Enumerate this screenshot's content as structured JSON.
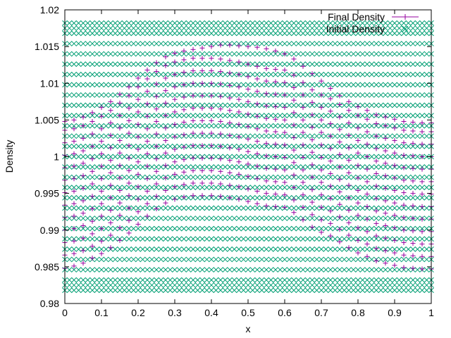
{
  "chart_data": {
    "type": "scatter",
    "title": "",
    "xlabel": "x",
    "ylabel": "Density",
    "xlim": [
      0,
      1
    ],
    "ylim": [
      0.98,
      1.02
    ],
    "x_ticks": [
      0,
      0.1,
      0.2,
      0.3,
      0.4,
      0.5,
      0.6,
      0.7,
      0.8,
      0.9,
      1
    ],
    "x_tick_labels": [
      "0",
      "0.1",
      "0.2",
      "0.3",
      "0.4",
      "0.5",
      "0.6",
      "0.7",
      "0.8",
      "0.9",
      "1"
    ],
    "y_ticks": [
      0.98,
      0.985,
      0.99,
      0.995,
      1,
      1.005,
      1.01,
      1.015,
      1.02
    ],
    "y_tick_labels": [
      "0.98",
      "0.985",
      "0.99",
      "0.995",
      "1",
      "1.005",
      "1.01",
      "1.015",
      "1.02"
    ],
    "grid": false,
    "legend_position": "top-right",
    "series": [
      {
        "name": "Final Density",
        "marker": "plus",
        "color": "#94009f",
        "x": [
          0,
          0.025,
          0.05,
          0.075,
          0.1,
          0.125,
          0.15,
          0.175,
          0.2,
          0.225,
          0.25,
          0.275,
          0.3,
          0.325,
          0.35,
          0.375,
          0.4,
          0.425,
          0.45,
          0.475,
          0.5,
          0.525,
          0.55,
          0.575,
          0.6,
          0.625,
          0.65,
          0.675,
          0.7,
          0.725,
          0.75,
          0.775,
          0.8,
          0.825,
          0.85,
          0.875,
          0.9,
          0.925,
          0.95,
          0.975,
          1
        ],
        "rows": [
          [
            0.9848,
            0.9851,
            0.9855,
            0.9862,
            0.9868,
            0.9876,
            0.9886,
            0.9896,
            0.9908,
            0.9919,
            0.9929,
            0.9937,
            0.9942,
            0.9945,
            0.9947,
            0.9947,
            0.9947,
            0.9946,
            0.9944,
            0.9942,
            0.9939,
            0.9936,
            0.9933,
            0.9932,
            0.9931,
            0.9924,
            0.9914,
            0.9904,
            0.9897,
            0.9892,
            0.9884,
            0.9876,
            0.9869,
            0.9864,
            0.9858,
            0.9855,
            0.9852,
            0.9849,
            0.9848,
            0.9847,
            0.9847
          ],
          [
            0.9866,
            0.9868,
            0.9872,
            0.9878,
            0.9885,
            0.9893,
            0.9903,
            0.9913,
            0.9925,
            0.9936,
            0.9946,
            0.9954,
            0.9959,
            0.9962,
            0.9964,
            0.9964,
            0.9964,
            0.9963,
            0.9961,
            0.9959,
            0.9956,
            0.9953,
            0.995,
            0.9949,
            0.9948,
            0.9941,
            0.9931,
            0.9921,
            0.9914,
            0.9909,
            0.9901,
            0.9893,
            0.9886,
            0.9881,
            0.9875,
            0.9872,
            0.9869,
            0.9866,
            0.9865,
            0.9864,
            0.9864
          ],
          [
            0.9883,
            0.9885,
            0.9889,
            0.9895,
            0.9902,
            0.991,
            0.992,
            0.993,
            0.9942,
            0.9953,
            0.9963,
            0.9971,
            0.9976,
            0.9979,
            0.9981,
            0.9981,
            0.9981,
            0.998,
            0.9978,
            0.9976,
            0.9973,
            0.997,
            0.9967,
            0.9966,
            0.9965,
            0.9958,
            0.9948,
            0.9938,
            0.9931,
            0.9926,
            0.9918,
            0.991,
            0.9903,
            0.9898,
            0.9892,
            0.9889,
            0.9886,
            0.9883,
            0.9882,
            0.9881,
            0.9881
          ],
          [
            0.99,
            0.9902,
            0.9906,
            0.9912,
            0.9919,
            0.9927,
            0.9937,
            0.9947,
            0.9959,
            0.997,
            0.998,
            0.9988,
            0.9993,
            0.9996,
            0.9998,
            0.9998,
            0.9998,
            0.9997,
            0.9995,
            0.9993,
            0.999,
            0.9987,
            0.9984,
            0.9983,
            0.9982,
            0.9975,
            0.9965,
            0.9955,
            0.9948,
            0.9943,
            0.9935,
            0.9927,
            0.992,
            0.9915,
            0.9909,
            0.9906,
            0.9903,
            0.99,
            0.9899,
            0.9898,
            0.9898
          ],
          [
            0.9917,
            0.9919,
            0.9923,
            0.9929,
            0.9936,
            0.9944,
            0.9954,
            0.9964,
            0.9976,
            0.9987,
            0.9997,
            1.0005,
            1.001,
            1.0013,
            1.0015,
            1.0015,
            1.0015,
            1.0014,
            1.0012,
            1.001,
            1.0007,
            1.0004,
            1.0001,
            1.0,
            0.9999,
            0.9992,
            0.9982,
            0.9972,
            0.9965,
            0.996,
            0.9952,
            0.9944,
            0.9937,
            0.9932,
            0.9926,
            0.9923,
            0.992,
            0.9917,
            0.9916,
            0.9915,
            0.9915
          ],
          [
            0.9934,
            0.9936,
            0.994,
            0.9946,
            0.9953,
            0.9961,
            0.9971,
            0.9981,
            0.9993,
            1.0004,
            1.0014,
            1.0022,
            1.0027,
            1.003,
            1.0032,
            1.0032,
            1.0032,
            1.0031,
            1.0029,
            1.0027,
            1.0024,
            1.0021,
            1.0018,
            1.0017,
            1.0016,
            1.0009,
            0.9999,
            0.9989,
            0.9982,
            0.9977,
            0.9969,
            0.9961,
            0.9954,
            0.9949,
            0.9943,
            0.994,
            0.9937,
            0.9934,
            0.9933,
            0.9932,
            0.9932
          ],
          [
            0.9951,
            0.9953,
            0.9957,
            0.9963,
            0.997,
            0.9978,
            0.9988,
            0.9998,
            1.001,
            1.0021,
            1.0031,
            1.0039,
            1.0044,
            1.0047,
            1.0049,
            1.0049,
            1.0049,
            1.0048,
            1.0046,
            1.0044,
            1.0041,
            1.0038,
            1.0035,
            1.0034,
            1.0033,
            1.0026,
            1.0016,
            1.0006,
            0.9999,
            0.9994,
            0.9986,
            0.9978,
            0.9971,
            0.9966,
            0.996,
            0.9957,
            0.9954,
            0.9951,
            0.995,
            0.9949,
            0.9949
          ],
          [
            0.9968,
            0.997,
            0.9974,
            0.998,
            0.9987,
            0.9995,
            1.0005,
            1.0015,
            1.0027,
            1.0038,
            1.0048,
            1.0056,
            1.0061,
            1.0064,
            1.0066,
            1.0066,
            1.0066,
            1.0065,
            1.0063,
            1.0061,
            1.0058,
            1.0055,
            1.0052,
            1.0051,
            1.005,
            1.0043,
            1.0033,
            1.0023,
            1.0016,
            1.0011,
            1.0003,
            0.9995,
            0.9988,
            0.9983,
            0.9977,
            0.9974,
            0.9971,
            0.9968,
            0.9967,
            0.9966,
            0.9966
          ],
          [
            0.9985,
            0.9987,
            0.9991,
            0.9997,
            1.0004,
            1.0012,
            1.0022,
            1.0032,
            1.0044,
            1.0055,
            1.0065,
            1.0073,
            1.0078,
            1.0081,
            1.0083,
            1.0083,
            1.0083,
            1.0082,
            1.008,
            1.0078,
            1.0075,
            1.0072,
            1.0069,
            1.0068,
            1.0067,
            1.006,
            1.005,
            1.004,
            1.0033,
            1.0028,
            1.002,
            1.0012,
            1.0005,
            1.0,
            0.9994,
            0.9991,
            0.9988,
            0.9985,
            0.9984,
            0.9983,
            0.9983
          ],
          [
            1.0002,
            1.0004,
            1.0008,
            1.0014,
            1.0021,
            1.0029,
            1.0039,
            1.0049,
            1.0061,
            1.0072,
            1.0082,
            1.009,
            1.0095,
            1.0098,
            1.01,
            1.01,
            1.01,
            1.0099,
            1.0097,
            1.0095,
            1.0092,
            1.0089,
            1.0086,
            1.0085,
            1.0084,
            1.0077,
            1.0067,
            1.0057,
            1.005,
            1.0045,
            1.0037,
            1.0029,
            1.0022,
            1.0017,
            1.0011,
            1.0008,
            1.0005,
            1.0002,
            1.0001,
            1.0,
            1.0
          ],
          [
            1.0019,
            1.0021,
            1.0025,
            1.0031,
            1.0038,
            1.0046,
            1.0056,
            1.0066,
            1.0078,
            1.0089,
            1.0099,
            1.0107,
            1.0112,
            1.0115,
            1.0117,
            1.0117,
            1.0117,
            1.0116,
            1.0114,
            1.0112,
            1.0109,
            1.0106,
            1.0103,
            1.0102,
            1.0101,
            1.0094,
            1.0084,
            1.0074,
            1.0067,
            1.0062,
            1.0054,
            1.0046,
            1.0039,
            1.0034,
            1.0028,
            1.0025,
            1.0022,
            1.0019,
            1.0018,
            1.0017,
            1.0017
          ],
          [
            1.0036,
            1.0038,
            1.0042,
            1.0048,
            1.0055,
            1.0063,
            1.0073,
            1.0083,
            1.0095,
            1.0106,
            1.0116,
            1.0124,
            1.0129,
            1.0132,
            1.0134,
            1.0134,
            1.0134,
            1.0133,
            1.0131,
            1.0129,
            1.0126,
            1.0123,
            1.012,
            1.0119,
            1.0118,
            1.0111,
            1.0101,
            1.0091,
            1.0084,
            1.0079,
            1.0071,
            1.0063,
            1.0056,
            1.0051,
            1.0045,
            1.0042,
            1.0039,
            1.0036,
            1.0035,
            1.0034,
            1.0034
          ],
          [
            1.0048,
            1.005,
            1.0054,
            1.006,
            1.0067,
            1.0075,
            1.0085,
            1.0095,
            1.0107,
            1.0118,
            1.0128,
            1.0136,
            1.0141,
            1.0144,
            1.0146,
            1.0148,
            1.015,
            1.0152,
            1.0152,
            1.0151,
            1.015,
            1.0149,
            1.0147,
            1.0144,
            1.014,
            1.0133,
            1.0123,
            1.0113,
            1.0103,
            1.0093,
            1.0083,
            1.0075,
            1.0068,
            1.0063,
            1.0057,
            1.0054,
            1.0051,
            1.0048,
            1.0047,
            1.0046,
            1.0046
          ]
        ]
      },
      {
        "name": "Initial Density",
        "marker": "cross",
        "color": "#009e73",
        "x_start": 0,
        "x_end": 1,
        "x_step": 0.0125,
        "y_levels": [
          0.9818,
          0.9825,
          0.9832,
          0.9846,
          0.986,
          0.9874,
          0.9888,
          0.9902,
          0.9916,
          0.993,
          0.9944,
          0.9958,
          0.9972,
          0.9986,
          1.0,
          1.0014,
          1.0028,
          1.0042,
          1.0056,
          1.007,
          1.0084,
          1.0098,
          1.0112,
          1.0126,
          1.014,
          1.0154,
          1.0168,
          1.0175,
          1.0182
        ]
      }
    ]
  }
}
